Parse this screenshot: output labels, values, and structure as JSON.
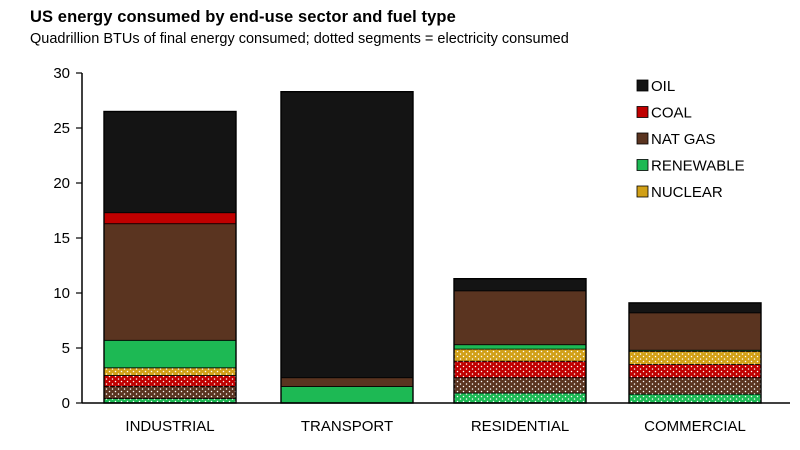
{
  "chart_data": {
    "type": "bar",
    "stacked": true,
    "title": "US energy consumed by end-use sector and fuel type",
    "subtitle": "Quadrillion BTUs of final energy consumed; dotted segments = electricity consumed",
    "categories": [
      "INDUSTRIAL",
      "TRANSPORT",
      "RESIDENTIAL",
      "COMMERCIAL"
    ],
    "ylim": [
      0,
      30
    ],
    "yticks": [
      0,
      5,
      10,
      15,
      20,
      25,
      30
    ],
    "grid": false,
    "legend_position": "top-right",
    "stack_order_bottom_to_top": [
      {
        "fuel": "RENEWABLE",
        "kind": "electricity"
      },
      {
        "fuel": "NAT GAS",
        "kind": "electricity"
      },
      {
        "fuel": "COAL",
        "kind": "electricity"
      },
      {
        "fuel": "NUCLEAR",
        "kind": "electricity"
      },
      {
        "fuel": "RENEWABLE",
        "kind": "direct"
      },
      {
        "fuel": "NAT GAS",
        "kind": "direct"
      },
      {
        "fuel": "COAL",
        "kind": "direct"
      },
      {
        "fuel": "OIL",
        "kind": "direct"
      }
    ],
    "series": [
      {
        "name": "RENEWABLE",
        "kind": "electricity",
        "values": [
          0.4,
          0.0,
          0.9,
          0.8
        ]
      },
      {
        "name": "NAT GAS",
        "kind": "electricity",
        "values": [
          1.1,
          0.0,
          1.4,
          1.5
        ]
      },
      {
        "name": "COAL",
        "kind": "electricity",
        "values": [
          1.0,
          0.0,
          1.5,
          1.2
        ]
      },
      {
        "name": "NUCLEAR",
        "kind": "electricity",
        "values": [
          0.7,
          0.0,
          1.1,
          1.2
        ]
      },
      {
        "name": "RENEWABLE",
        "kind": "direct",
        "values": [
          2.5,
          1.5,
          0.4,
          0.1
        ]
      },
      {
        "name": "NAT GAS",
        "kind": "direct",
        "values": [
          10.6,
          0.8,
          4.9,
          3.4
        ]
      },
      {
        "name": "COAL",
        "kind": "direct",
        "values": [
          1.0,
          0.0,
          0.0,
          0.0
        ]
      },
      {
        "name": "OIL",
        "kind": "direct",
        "values": [
          9.2,
          26.0,
          1.1,
          0.9
        ]
      }
    ],
    "totals": [
      26.5,
      28.3,
      11.3,
      9.1
    ],
    "legend": [
      {
        "label": "OIL",
        "color": "#141414"
      },
      {
        "label": "COAL",
        "color": "#c00000"
      },
      {
        "label": "NAT GAS",
        "color": "#5a3420"
      },
      {
        "label": "RENEWABLE",
        "color": "#1db954"
      },
      {
        "label": "NUCLEAR",
        "color": "#d1a017"
      }
    ],
    "colors": {
      "OIL": "#141414",
      "COAL": "#c00000",
      "NAT GAS": "#5a3420",
      "RENEWABLE": "#1db954",
      "NUCLEAR": "#d1a017"
    }
  }
}
